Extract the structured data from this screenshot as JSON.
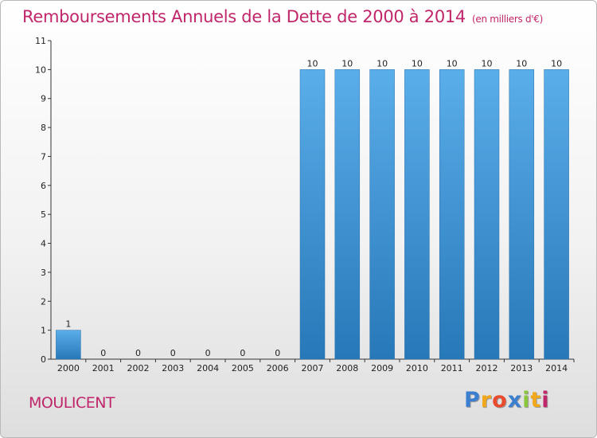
{
  "header": {
    "title": "Remboursements Annuels de la Dette de 2000 à 2014",
    "subtitle": "(en milliers d'€)"
  },
  "footer": {
    "place": "MOULICENT",
    "logo": [
      "P",
      "r",
      "o",
      "x",
      "i",
      "t",
      "i"
    ]
  },
  "colors": {
    "bar_top": "#5aaee9",
    "bar_bottom": "#2778b8",
    "title": "#c0266a",
    "logo": [
      "#3b7fd0",
      "#f2a81c",
      "#e84b2e",
      "#3b7fd0",
      "#8cc63f",
      "#f2a81c",
      "#c0266a"
    ]
  },
  "chart_data": {
    "type": "bar",
    "categories": [
      "2000",
      "2001",
      "2002",
      "2003",
      "2004",
      "2005",
      "2006",
      "2007",
      "2008",
      "2009",
      "2010",
      "2011",
      "2012",
      "2013",
      "2014"
    ],
    "values": [
      1,
      0,
      0,
      0,
      0,
      0,
      0,
      10,
      10,
      10,
      10,
      10,
      10,
      10,
      10
    ],
    "title": "Remboursements Annuels de la Dette de 2000 à 2014",
    "xlabel": "",
    "ylabel": "",
    "ylim": [
      0,
      11
    ],
    "yticks": [
      0,
      1,
      2,
      3,
      4,
      5,
      6,
      7,
      8,
      9,
      10,
      11
    ],
    "grid": false
  }
}
